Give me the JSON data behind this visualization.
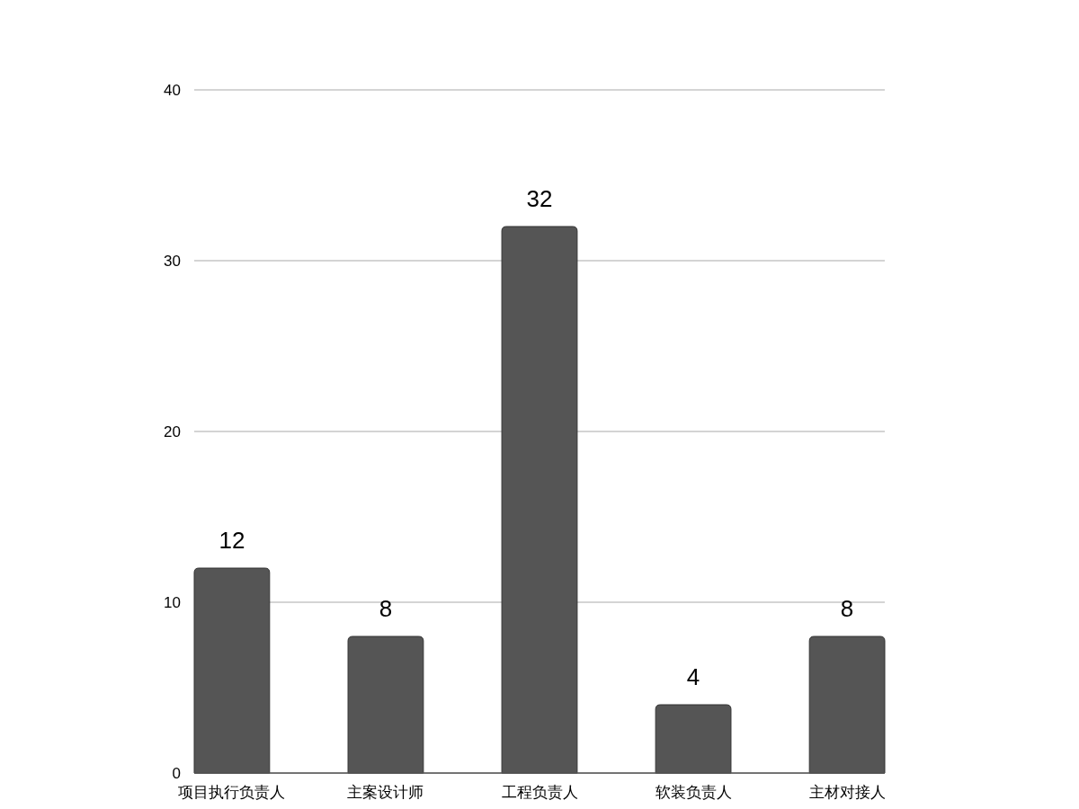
{
  "chart_data": {
    "type": "bar",
    "categories": [
      "项目执行负责人",
      "主案设计师",
      "工程负责人",
      "软装负责人",
      "主材对接人"
    ],
    "values": [
      12,
      8,
      32,
      4,
      8
    ],
    "color": "#555555",
    "ylim": [
      0,
      40
    ],
    "yticks": [
      0,
      10,
      20,
      30,
      40
    ],
    "grid": "y",
    "data_labels": true
  }
}
